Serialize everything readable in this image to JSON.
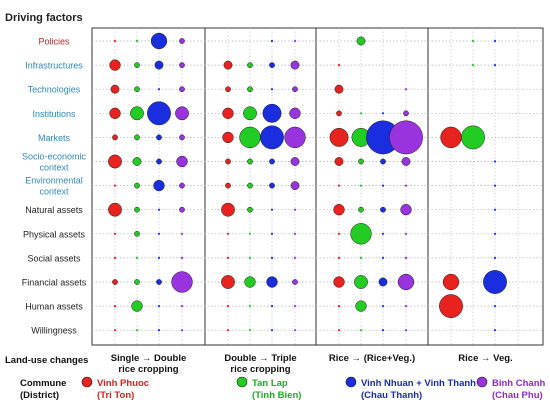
{
  "chart_data": {
    "type": "bubble-matrix",
    "y_axis_title": "Driving factors",
    "x_axis_title": "Land-use changes",
    "legend_title_line1": "Commune",
    "legend_title_line2": "(District)",
    "factors": [
      {
        "label": "Policies",
        "color": "#c0282d",
        "lines": [
          "Policies"
        ]
      },
      {
        "label": "Infrastructures",
        "color": "#2f87b3",
        "lines": [
          "Infrastructures"
        ]
      },
      {
        "label": "Technologies",
        "color": "#2f87b3",
        "lines": [
          "Technologies"
        ]
      },
      {
        "label": "Institutions",
        "color": "#2f87b3",
        "lines": [
          "Institutions"
        ]
      },
      {
        "label": "Markets",
        "color": "#2f87b3",
        "lines": [
          "Markets"
        ]
      },
      {
        "label": "Socio-economic context",
        "color": "#2f87b3",
        "lines": [
          "Socio-economic",
          "context"
        ]
      },
      {
        "label": "Environmental context",
        "color": "#2f87b3",
        "lines": [
          "Environmental",
          "context"
        ]
      },
      {
        "label": "Natural assets",
        "color": "#222222",
        "lines": [
          "Natural assets"
        ]
      },
      {
        "label": "Physical assets",
        "color": "#222222",
        "lines": [
          "Physical assets"
        ]
      },
      {
        "label": "Social assets",
        "color": "#222222",
        "lines": [
          "Social assets"
        ]
      },
      {
        "label": "Financial assets",
        "color": "#222222",
        "lines": [
          "Financial assets"
        ]
      },
      {
        "label": "Human assets",
        "color": "#222222",
        "lines": [
          "Human assets"
        ]
      },
      {
        "label": "Willingness",
        "color": "#222222",
        "lines": [
          "Willingness"
        ]
      }
    ],
    "land_use_changes": [
      {
        "from": "Single",
        "to": "Double",
        "line2": "rice cropping"
      },
      {
        "from": "Double",
        "to": "Triple",
        "line2": "rice cropping"
      },
      {
        "from": "Rice",
        "to": "(Rice+Veg.)",
        "line2": ""
      },
      {
        "from": "Rice",
        "to": "Veg.",
        "line2": ""
      }
    ],
    "communes": [
      {
        "name": "Vinh Phuoc",
        "district": "(Tri Ton)",
        "color": "#e8231f",
        "text_color": "#d42020"
      },
      {
        "name": "Tan Lap",
        "district": "(Tinh Bien)",
        "color": "#22cc22",
        "text_color": "#1faa1f"
      },
      {
        "name": "Vinh Nhuan + Vinh Thanh",
        "district": "(Chau Thanh)",
        "color": "#1a2ee0",
        "text_color": "#1a2aa8"
      },
      {
        "name": "Binh Chanh",
        "district": "(Chau Phu)",
        "color": "#9933dd",
        "text_color": "#8a2bc8"
      }
    ],
    "values_note": "relative importance (bubble size), 0 = not present",
    "values": [
      [
        [
          1,
          1,
          6,
          2
        ],
        [
          0,
          0,
          1,
          1
        ],
        [
          0,
          3,
          0,
          0
        ],
        [
          0,
          1,
          1,
          0
        ]
      ],
      [
        [
          4,
          2,
          3,
          2
        ],
        [
          3,
          2,
          2,
          3
        ],
        [
          1,
          0,
          0,
          0
        ],
        [
          0,
          1,
          1,
          0
        ]
      ],
      [
        [
          3,
          2,
          1,
          2
        ],
        [
          2,
          2,
          1,
          2
        ],
        [
          3,
          0,
          0,
          1
        ],
        [
          0,
          0,
          0,
          0
        ]
      ],
      [
        [
          4,
          5,
          9,
          5
        ],
        [
          4,
          5,
          7,
          4
        ],
        [
          2,
          1,
          1,
          2
        ],
        [
          0,
          0,
          0,
          0
        ]
      ],
      [
        [
          2,
          2,
          2,
          2
        ],
        [
          4,
          8,
          9,
          8
        ],
        [
          7,
          7,
          13,
          13
        ],
        [
          8,
          9,
          0,
          0
        ]
      ],
      [
        [
          5,
          3,
          2,
          4
        ],
        [
          2,
          2,
          2,
          3
        ],
        [
          3,
          2,
          2,
          3
        ],
        [
          0,
          0,
          1,
          0
        ]
      ],
      [
        [
          1,
          2,
          4,
          2
        ],
        [
          2,
          2,
          2,
          3
        ],
        [
          1,
          1,
          1,
          1
        ],
        [
          0,
          0,
          1,
          0
        ]
      ],
      [
        [
          5,
          2,
          1,
          2
        ],
        [
          5,
          2,
          1,
          1
        ],
        [
          4,
          2,
          2,
          4
        ],
        [
          0,
          0,
          1,
          0
        ]
      ],
      [
        [
          1,
          2,
          1,
          1
        ],
        [
          1,
          1,
          1,
          1
        ],
        [
          1,
          8,
          1,
          1
        ],
        [
          0,
          0,
          1,
          0
        ]
      ],
      [
        [
          1,
          1,
          1,
          1
        ],
        [
          1,
          1,
          1,
          1
        ],
        [
          1,
          1,
          1,
          1
        ],
        [
          0,
          0,
          1,
          0
        ]
      ],
      [
        [
          2,
          2,
          2,
          8
        ],
        [
          5,
          4,
          4,
          2
        ],
        [
          4,
          5,
          3,
          6
        ],
        [
          6,
          0,
          9,
          0
        ]
      ],
      [
        [
          1,
          4,
          1,
          1
        ],
        [
          1,
          1,
          1,
          1
        ],
        [
          1,
          4,
          1,
          1
        ],
        [
          9,
          0,
          1,
          0
        ]
      ],
      [
        [
          1,
          1,
          1,
          1
        ],
        [
          1,
          1,
          1,
          1
        ],
        [
          1,
          1,
          1,
          1
        ],
        [
          0,
          0,
          1,
          0
        ]
      ]
    ]
  }
}
